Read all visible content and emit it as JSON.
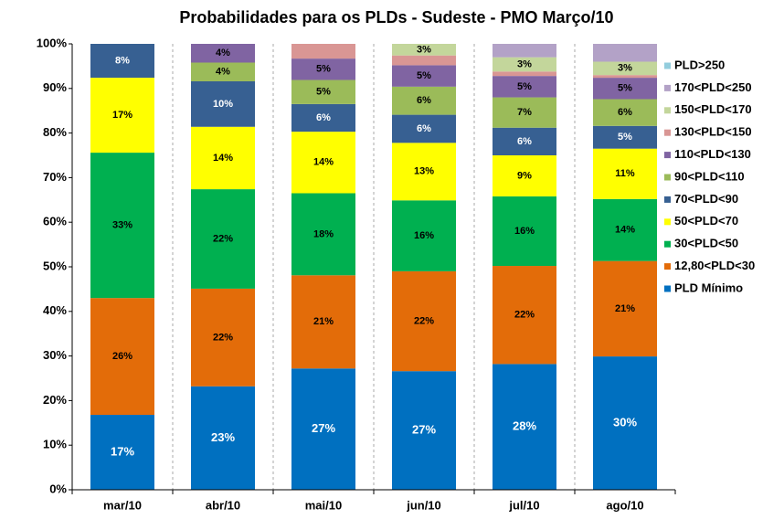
{
  "chart_data": {
    "type": "stacked_bar",
    "title": "Probabilidades para os PLDs - Sudeste - PMO Março/10",
    "categories": [
      "mar/10",
      "abr/10",
      "mai/10",
      "jun/10",
      "jul/10",
      "ago/10"
    ],
    "ylim": [
      0,
      100
    ],
    "yticks": [
      {
        "value": 0,
        "label": "0%"
      },
      {
        "value": 10,
        "label": "10%"
      },
      {
        "value": 20,
        "label": "20%"
      },
      {
        "value": 30,
        "label": "30%"
      },
      {
        "value": 40,
        "label": "40%"
      },
      {
        "value": 50,
        "label": "50%"
      },
      {
        "value": 60,
        "label": "60%"
      },
      {
        "value": 70,
        "label": "70%"
      },
      {
        "value": 80,
        "label": "80%"
      },
      {
        "value": 90,
        "label": "90%"
      },
      {
        "value": 100,
        "label": "100%"
      }
    ],
    "legend": "right",
    "series": [
      {
        "name": "PLD Mínimo",
        "color": "#0070c0",
        "values": [
          16.8,
          23.2,
          27.2,
          26.6,
          28.2,
          29.9
        ],
        "value_labels": [
          "17%",
          "23%",
          "27%",
          "27%",
          "28%",
          "30%"
        ]
      },
      {
        "name": "12,80<PLD<30",
        "color": "#e36c09",
        "values": [
          26.2,
          21.9,
          20.9,
          22.4,
          22.0,
          21.4
        ],
        "value_labels": [
          "26%",
          "22%",
          "21%",
          "22%",
          "22%",
          "21%"
        ]
      },
      {
        "name": "30<PLD<50",
        "color": "#00b050",
        "values": [
          32.6,
          22.3,
          18.4,
          15.9,
          15.6,
          13.9
        ],
        "value_labels": [
          "33%",
          "22%",
          "18%",
          "16%",
          "16%",
          "14%"
        ]
      },
      {
        "name": "50<PLD<70",
        "color": "#ffff00",
        "values": [
          16.8,
          14.0,
          13.8,
          12.9,
          9.2,
          11.3
        ],
        "value_labels": [
          "17%",
          "14%",
          "14%",
          "13%",
          "9%",
          "11%"
        ]
      },
      {
        "name": "70<PLD<90",
        "color": "#376092",
        "values": [
          7.6,
          10.2,
          6.2,
          6.3,
          6.2,
          5.1
        ],
        "value_labels": [
          "8%",
          "10%",
          "6%",
          "6%",
          "6%",
          "5%"
        ]
      },
      {
        "name": "90<PLD<110",
        "color": "#9bbb59",
        "values": [
          0,
          4.2,
          5.4,
          6.3,
          6.8,
          6.0
        ],
        "value_labels": [
          null,
          "4%",
          "5%",
          "6%",
          "7%",
          "6%"
        ]
      },
      {
        "name": "110<PLD<130",
        "color": "#8064a2",
        "values": [
          0,
          4.2,
          4.8,
          4.8,
          4.8,
          4.8
        ],
        "value_labels": [
          null,
          "4%",
          "5%",
          "5%",
          "5%",
          "5%"
        ]
      },
      {
        "name": "130<PLD<150",
        "color": "#d99694",
        "values": [
          0,
          0,
          3.3,
          2.2,
          1.0,
          0.6
        ],
        "value_labels": [
          null,
          null,
          null,
          null,
          null,
          null
        ]
      },
      {
        "name": "150<PLD<170",
        "color": "#c3d69b",
        "values": [
          0,
          0,
          0,
          2.6,
          3.2,
          3.0
        ],
        "value_labels": [
          null,
          null,
          null,
          "3%",
          "3%",
          "3%"
        ]
      },
      {
        "name": "170<PLD<250",
        "color": "#b3a2c7",
        "values": [
          0,
          0,
          0,
          0,
          3.0,
          4.0
        ],
        "value_labels": [
          null,
          null,
          null,
          null,
          null,
          null
        ]
      },
      {
        "name": "PLD>250",
        "color": "#93cddd",
        "values": [
          0,
          0,
          0,
          0,
          0,
          0
        ],
        "value_labels": [
          null,
          null,
          null,
          null,
          null,
          null
        ]
      }
    ]
  }
}
